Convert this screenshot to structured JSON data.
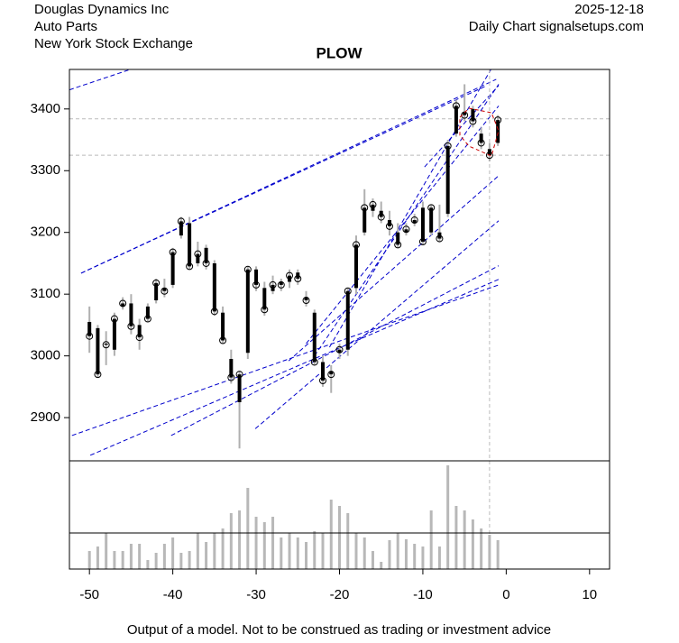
{
  "header": {
    "company": "Douglas Dynamics Inc",
    "sector": "Auto Parts",
    "exchange": "New York Stock Exchange",
    "date": "2025-12-18",
    "source": "Daily Chart signalsetups.com"
  },
  "footer": "Output of a model. Not to be construed as trading or investment advice",
  "chart_data": {
    "type": "candlestick",
    "title": "PLOW",
    "x": [
      -50,
      -49,
      -48,
      -47,
      -46,
      -45,
      -44,
      -43,
      -42,
      -41,
      -40,
      -39,
      -38,
      -37,
      -36,
      -35,
      -34,
      -33,
      -32,
      -31,
      -30,
      -29,
      -28,
      -27,
      -26,
      -25,
      -24,
      -23,
      -22,
      -21,
      -20,
      -19,
      -18,
      -17,
      -16,
      -15,
      -14,
      -13,
      -12,
      -11,
      -10,
      -9,
      -8,
      -7,
      -6,
      -5,
      -4,
      -3,
      -2,
      -1
    ],
    "open": [
      3055,
      3045,
      3020,
      3010,
      3080,
      3085,
      3050,
      3080,
      3090,
      3110,
      3115,
      3195,
      3215,
      3150,
      3175,
      3150,
      3070,
      2995,
      2925,
      3005,
      3140,
      3110,
      3105,
      3120,
      3120,
      3135,
      3095,
      3070,
      2990,
      2975,
      3005,
      3010,
      3110,
      3200,
      3235,
      3235,
      3220,
      3200,
      3200,
      3215,
      3240,
      3200,
      3200,
      3230,
      3360,
      3395,
      3400,
      3360,
      3335,
      3345
    ],
    "high": [
      3080,
      3050,
      3040,
      3070,
      3095,
      3100,
      3060,
      3085,
      3125,
      3125,
      3175,
      3225,
      3225,
      3185,
      3180,
      3155,
      3080,
      3010,
      2975,
      3145,
      3145,
      3120,
      3130,
      3125,
      3140,
      3140,
      3105,
      3075,
      3000,
      2985,
      3020,
      3110,
      3195,
      3270,
      3255,
      3250,
      3235,
      3215,
      3215,
      3230,
      3250,
      3245,
      3245,
      3350,
      3415,
      3440,
      3405,
      3370,
      3345,
      3390
    ],
    "low": [
      3005,
      2965,
      2985,
      3000,
      3075,
      3035,
      3010,
      3055,
      3085,
      3095,
      3110,
      3190,
      3140,
      3145,
      3140,
      3065,
      3020,
      2955,
      2850,
      2995,
      3105,
      3065,
      3100,
      3105,
      3110,
      3115,
      3080,
      2985,
      2950,
      2940,
      2995,
      3000,
      3100,
      3195,
      3225,
      3215,
      3195,
      3175,
      3195,
      3210,
      3180,
      3195,
      3185,
      3225,
      3355,
      3380,
      3370,
      3335,
      3315,
      3340
    ],
    "close": [
      3032,
      2970,
      3018,
      3060,
      3085,
      3048,
      3030,
      3060,
      3118,
      3105,
      3168,
      3218,
      3145,
      3165,
      3150,
      3072,
      3025,
      2965,
      2970,
      3140,
      3115,
      3075,
      3115,
      3115,
      3130,
      3125,
      3090,
      2990,
      2960,
      2970,
      3010,
      3105,
      3180,
      3240,
      3245,
      3225,
      3210,
      3180,
      3205,
      3220,
      3185,
      3240,
      3190,
      3340,
      3405,
      3390,
      3380,
      3345,
      3325,
      3382
    ],
    "volume": [
      20,
      25,
      40,
      20,
      20,
      28,
      28,
      10,
      18,
      28,
      35,
      18,
      20,
      40,
      30,
      40,
      45,
      62,
      65,
      90,
      58,
      52,
      58,
      35,
      40,
      35,
      30,
      42,
      40,
      77,
      70,
      62,
      40,
      35,
      20,
      8,
      32,
      40,
      33,
      28,
      25,
      65,
      25,
      115,
      70,
      65,
      55,
      45,
      38,
      32
    ],
    "xlim": [
      -52.4,
      12.4
    ],
    "xticks": [
      -50,
      -40,
      -30,
      -20,
      -10,
      0,
      10
    ],
    "ylim": [
      2830,
      3464
    ],
    "yticks": [
      2900,
      3000,
      3100,
      3200,
      3300,
      3400
    ],
    "volume_ylim": [
      0,
      120
    ],
    "hlines": [
      3384,
      3325
    ],
    "vline": -2,
    "trendlines": [
      {
        "x": [
          -52.4,
          -45.1
        ],
        "y": [
          3431,
          3464
        ]
      },
      {
        "x": [
          -51,
          -2.3
        ],
        "y": [
          3134,
          3438
        ]
      },
      {
        "x": [
          -51,
          -1.2
        ],
        "y": [
          3134,
          3448
        ]
      },
      {
        "x": [
          -52.1,
          -0.9
        ],
        "y": [
          2871,
          3115
        ]
      },
      {
        "x": [
          -49.9,
          -0.9
        ],
        "y": [
          2839,
          3124
        ]
      },
      {
        "x": [
          -40.2,
          -0.9
        ],
        "y": [
          2871,
          3146
        ]
      },
      {
        "x": [
          -30.1,
          -0.9
        ],
        "y": [
          2882,
          3219
        ]
      },
      {
        "x": [
          -26.1,
          -0.9
        ],
        "y": [
          2992,
          3292
        ]
      },
      {
        "x": [
          -21.2,
          -1.7
        ],
        "y": [
          3014,
          3467
        ]
      },
      {
        "x": [
          -23,
          -0.9
        ],
        "y": [
          3000,
          3440
        ]
      },
      {
        "x": [
          -24,
          -0.9
        ],
        "y": [
          3020,
          3405
        ]
      },
      {
        "x": [
          -9.8,
          -0.9
        ],
        "y": [
          3306,
          3438
        ]
      }
    ],
    "trendline_color": "#0000cc",
    "candle_color": "#000000",
    "wick_color": "#b0b0b0",
    "volume_color": "#b8b8b8"
  }
}
